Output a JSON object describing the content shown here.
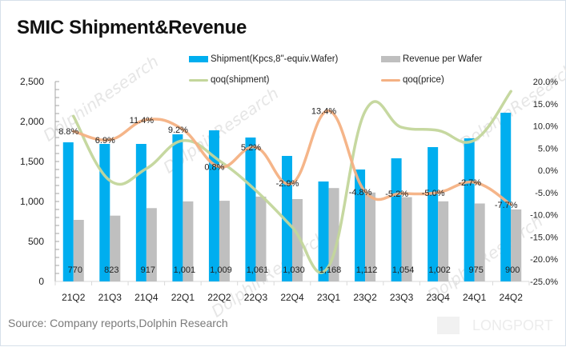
{
  "title": "SMIC Shipment&Revenue",
  "source": "Source: Company reports,Dolphin Research",
  "watermark": {
    "text": "DolphinResearch",
    "brand": "LONGPORT"
  },
  "colors": {
    "shipment": "#00aeef",
    "revenue": "#bfbfbf",
    "qoq_shipment": "#c3d69b",
    "qoq_price": "#f4b183",
    "axis": "#d9d9d9",
    "text": "#222222"
  },
  "legend": [
    {
      "name": "Shipment(Kpcs,8\"-equiv.Wafer)",
      "kind": "bar",
      "color": "#00aeef"
    },
    {
      "name": "Revenue per Wafer",
      "kind": "bar",
      "color": "#bfbfbf"
    },
    {
      "name": "qoq(shipment)",
      "kind": "line",
      "color": "#c3d69b"
    },
    {
      "name": "qoq(price)",
      "kind": "line",
      "color": "#f4b183"
    }
  ],
  "chart_data": {
    "type": "bar",
    "title": "SMIC Shipment&Revenue",
    "xlabel": "",
    "ylabel": "",
    "categories": [
      "21Q2",
      "21Q3",
      "21Q4",
      "22Q1",
      "22Q2",
      "22Q3",
      "22Q4",
      "23Q1",
      "23Q2",
      "23Q3",
      "23Q4",
      "24Q1",
      "24Q2"
    ],
    "left_axis": {
      "min": 0,
      "max": 2500,
      "step": 500,
      "ticks": [
        "0",
        "500",
        "1,000",
        "1,500",
        "2,000",
        "2,500"
      ]
    },
    "right_axis": {
      "min": -25,
      "max": 20,
      "step": 5,
      "ticks": [
        "-25.0%",
        "-20.0%",
        "-15.0%",
        "-10.0%",
        "-5.0%",
        "0.0%",
        "5.0%",
        "10.0%",
        "15.0%",
        "20.0%"
      ]
    },
    "series": [
      {
        "name": "Shipment(Kpcs,8\"-equiv.Wafer)",
        "type": "bar",
        "axis": "left",
        "values": [
          1740,
          1720,
          1720,
          1840,
          1890,
          1800,
          1570,
          1250,
          1400,
          1540,
          1680,
          1790,
          2110
        ]
      },
      {
        "name": "Revenue per Wafer",
        "type": "bar",
        "axis": "left",
        "values": [
          770,
          823,
          917,
          1001,
          1009,
          1061,
          1030,
          1168,
          1112,
          1054,
          1002,
          975,
          900
        ],
        "labels": [
          "770",
          "823",
          "917",
          "1,001",
          "1,009",
          "1,061",
          "1,030",
          "1,168",
          "1,112",
          "1,054",
          "1,002",
          "975",
          "900"
        ]
      },
      {
        "name": "qoq(shipment)",
        "type": "line",
        "axis": "right",
        "smooth": true,
        "values": [
          12.2,
          -2.3,
          0.4,
          6.7,
          2.2,
          -4.5,
          -12.8,
          -21.6,
          13.3,
          9.7,
          9.0,
          6.8,
          17.8
        ]
      },
      {
        "name": "qoq(price)",
        "type": "line",
        "axis": "right",
        "smooth": true,
        "values": [
          8.8,
          6.9,
          11.4,
          9.2,
          0.8,
          5.2,
          -2.9,
          13.4,
          -4.8,
          -5.2,
          -5.0,
          -2.7,
          -7.7
        ],
        "labels": [
          "8.8%",
          "6.9%",
          "11.4%",
          "9.2%",
          "0.8%",
          "5.2%",
          "-2.9%",
          "13.4%",
          "-4.8%",
          "-5.2%",
          "-5.0%",
          "-2.7%",
          "-7.7%"
        ]
      }
    ],
    "grid": false,
    "legend_position": "top"
  }
}
